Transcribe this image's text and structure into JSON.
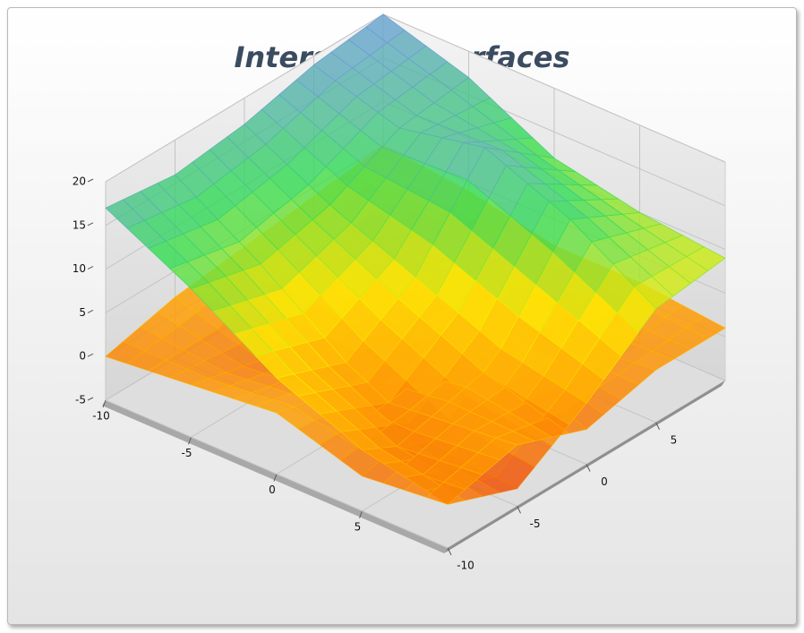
{
  "chart_data": {
    "type": "surface3d",
    "title": "Intersected Surfaces",
    "x": [
      -10,
      -5,
      0,
      5,
      10
    ],
    "y": [
      -10,
      -5,
      0,
      5,
      10
    ],
    "surfaces": [
      {
        "z": [
          [
            17,
            16,
            17,
            19,
            20
          ],
          [
            12,
            10,
            12,
            16,
            17
          ],
          [
            6,
            3,
            8,
            18,
            12
          ],
          [
            2,
            -2,
            4,
            14,
            10
          ],
          [
            0,
            -3,
            2,
            8,
            9
          ]
        ]
      },
      {
        "z": [
          [
            0,
            2,
            3,
            4,
            5
          ],
          [
            1,
            -1,
            3,
            2,
            4
          ],
          [
            2,
            0,
            1,
            3,
            2
          ],
          [
            -1,
            1,
            3,
            0,
            2
          ],
          [
            0,
            2,
            -1,
            1,
            1
          ]
        ]
      }
    ],
    "colorscale": [
      "#e61a00",
      "#ff9900",
      "#ffee00",
      "#33dd55",
      "#6b9fd6"
    ],
    "xlim": [
      -10,
      10
    ],
    "ylim": [
      -10,
      10
    ],
    "zlim": [
      -5,
      20
    ],
    "xticks": [
      -10,
      -5,
      0,
      5
    ],
    "yticks": [
      -10,
      -5,
      0,
      5
    ],
    "zticks": [
      -5,
      0,
      5,
      10,
      15,
      20
    ],
    "grid": true
  }
}
